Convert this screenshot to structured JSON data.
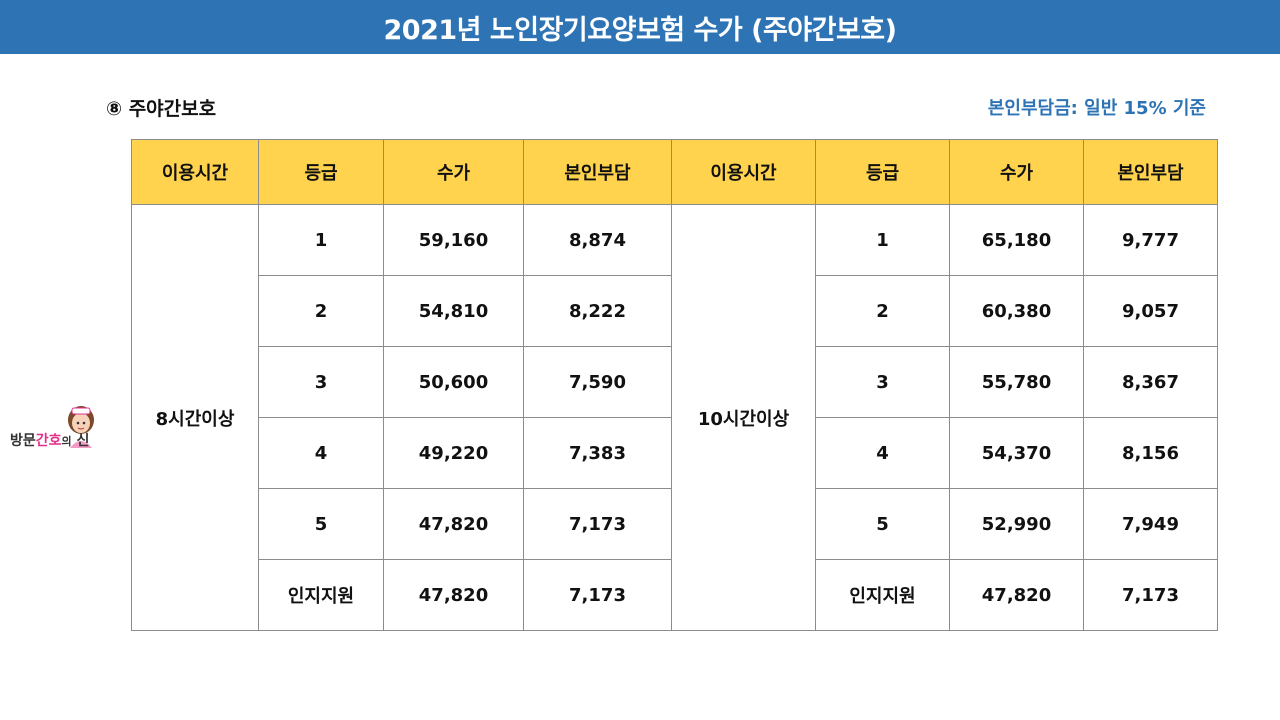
{
  "title": "2021년 노인장기요양보험 수가 (주야간보호)",
  "section_title": "⑧ 주야간보호",
  "note": "본인부담금: 일반 15% 기준",
  "logo": {
    "text_a": "방문",
    "text_b": "간호",
    "text_c": "의",
    "text_d": "신",
    "icon": "nurse-character-icon"
  },
  "colors": {
    "title_bar": "#2e74b5",
    "header_fill": "#ffd34d",
    "note_text": "#2e74b5"
  },
  "table": {
    "headers": [
      "이용시간",
      "등급",
      "수가",
      "본인부담",
      "이용시간",
      "등급",
      "수가",
      "본인부담"
    ],
    "left": {
      "time": "8시간이상",
      "rows": [
        {
          "grade": "1",
          "fee": "59,160",
          "copay": "8,874"
        },
        {
          "grade": "2",
          "fee": "54,810",
          "copay": "8,222"
        },
        {
          "grade": "3",
          "fee": "50,600",
          "copay": "7,590"
        },
        {
          "grade": "4",
          "fee": "49,220",
          "copay": "7,383"
        },
        {
          "grade": "5",
          "fee": "47,820",
          "copay": "7,173"
        },
        {
          "grade": "인지지원",
          "fee": "47,820",
          "copay": "7,173"
        }
      ]
    },
    "right": {
      "time": "10시간이상",
      "rows": [
        {
          "grade": "1",
          "fee": "65,180",
          "copay": "9,777"
        },
        {
          "grade": "2",
          "fee": "60,380",
          "copay": "9,057"
        },
        {
          "grade": "3",
          "fee": "55,780",
          "copay": "8,367"
        },
        {
          "grade": "4",
          "fee": "54,370",
          "copay": "8,156"
        },
        {
          "grade": "5",
          "fee": "52,990",
          "copay": "7,949"
        },
        {
          "grade": "인지지원",
          "fee": "47,820",
          "copay": "7,173"
        }
      ]
    }
  }
}
